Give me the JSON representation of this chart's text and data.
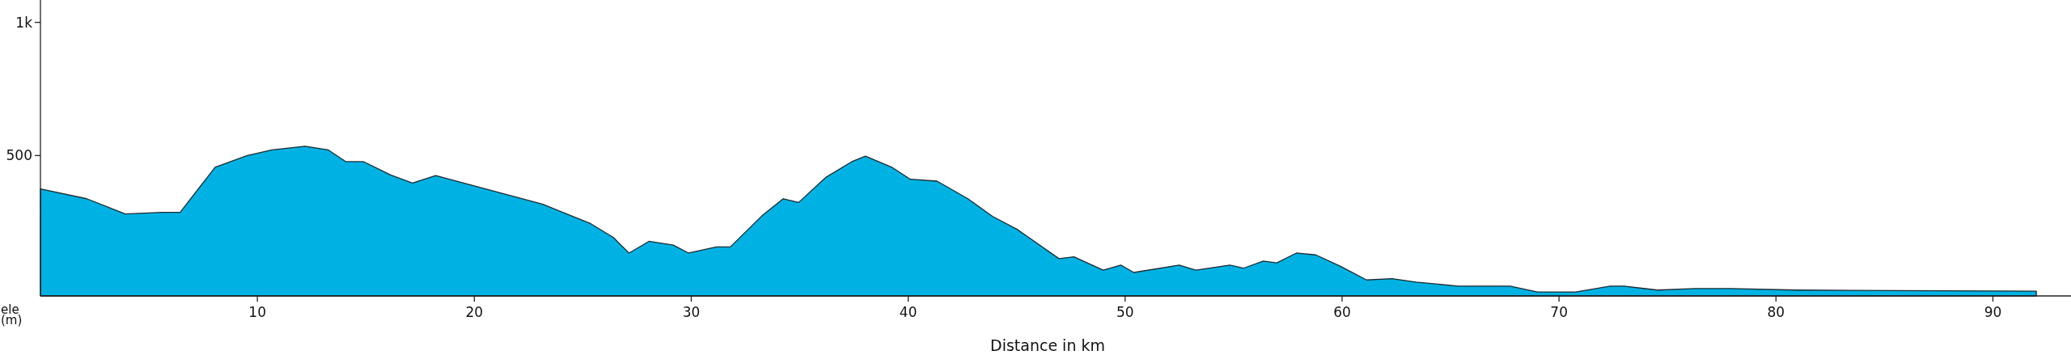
{
  "chart_data": {
    "type": "area",
    "xlabel": "Distance in km",
    "ylabel": "ele (m)",
    "x": [
      0,
      2.13,
      3.91,
      5.6,
      6.44,
      8.05,
      9.53,
      10.67,
      12.2,
      13.27,
      14.08,
      14.9,
      16.14,
      17.15,
      18.22,
      23.16,
      25.37,
      26.4,
      27.13,
      28.05,
      29.17,
      29.88,
      31.16,
      31.8,
      33.26,
      34.24,
      34.95,
      36.2,
      37.4,
      38.03,
      39.27,
      40.1,
      41.33,
      42.75,
      43.88,
      45.02,
      46.95,
      47.64,
      48.99,
      49.8,
      50.4,
      52.49,
      53.26,
      54.82,
      55.45,
      56.37,
      56.99,
      57.89,
      58.79,
      59.91,
      61.13,
      62.3,
      63.4,
      65.35,
      67.75,
      69.0,
      70.77,
      72.36,
      73.0,
      74.54,
      76.26,
      77.9,
      80.98,
      92.0
    ],
    "series": [
      {
        "color": "#00b2e3",
        "values": [
          375,
          338,
          281,
          287,
          287,
          456,
          500,
          521,
          535,
          521,
          477,
          477,
          427,
          397,
          425,
          317,
          244,
          193,
          134,
          178,
          164,
          134,
          157,
          157,
          274,
          338,
          324,
          418,
          477,
          498,
          455,
          411,
          404,
          338,
          272,
          223,
          113,
          120,
          70,
          89,
          61,
          89,
          70,
          89,
          77,
          104,
          97,
          134,
          127,
          85,
          33,
          38,
          25,
          10,
          10,
          -12,
          -12,
          10,
          10,
          -5,
          1,
          1,
          -5,
          -9
        ]
      }
    ],
    "xlim": [
      0,
      93.6
    ],
    "xticks": [
      10,
      20,
      30,
      40,
      50,
      60,
      70,
      80,
      90
    ],
    "ylim": [
      -27,
      1084
    ],
    "yticks": [
      500,
      {
        "value": 1000,
        "label": "1k"
      }
    ],
    "marker": "none"
  }
}
